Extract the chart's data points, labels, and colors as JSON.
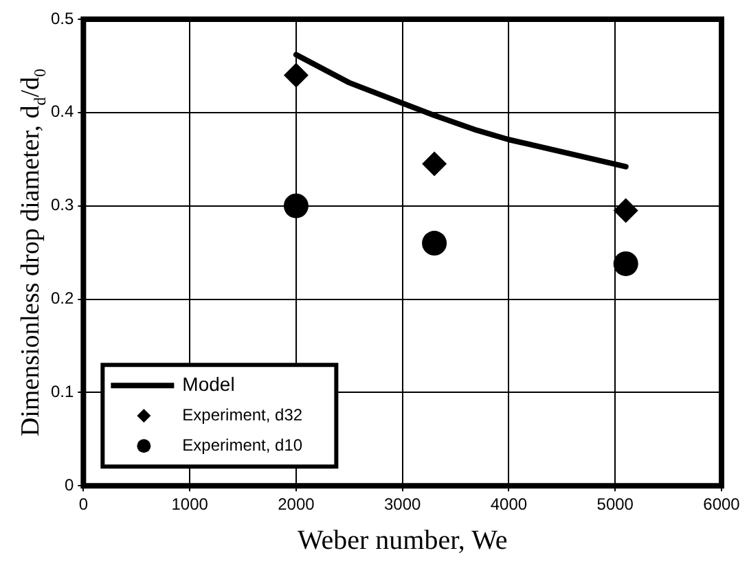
{
  "chart_data": {
    "type": "scatter",
    "xlabel": "Weber number, We",
    "ylabel": "Dimensionless drop diameter, d$_{d}$/d$_{0}$",
    "xlim": [
      0,
      6000
    ],
    "xticks": [
      0,
      1000,
      2000,
      3000,
      4000,
      5000,
      6000
    ],
    "ylim": [
      0,
      0.5
    ],
    "yticks": [
      0,
      0.1,
      0.2,
      0.3,
      0.4,
      0.5
    ],
    "grid": true,
    "legend": "bottom left",
    "series": [
      {
        "name": "Model",
        "type": "line",
        "color": "#000000",
        "marker": "none",
        "line_style": "solid",
        "x": [
          2000,
          2500,
          3000,
          3300,
          3700,
          4000,
          5100
        ],
        "values": [
          0.462,
          0.432,
          0.41,
          0.397,
          0.381,
          0.371,
          0.342
        ]
      },
      {
        "name": "Experiment, d32",
        "type": "scatter",
        "color": "#000000",
        "marker": "diamond",
        "x": [
          2000,
          3300,
          5100
        ],
        "values": [
          0.44,
          0.345,
          0.295
        ]
      },
      {
        "name": "Experiment, d10",
        "type": "scatter",
        "color": "#000000",
        "marker": "circle",
        "x": [
          2000,
          3300,
          5100
        ],
        "values": [
          0.3,
          0.26,
          0.238
        ]
      }
    ]
  }
}
